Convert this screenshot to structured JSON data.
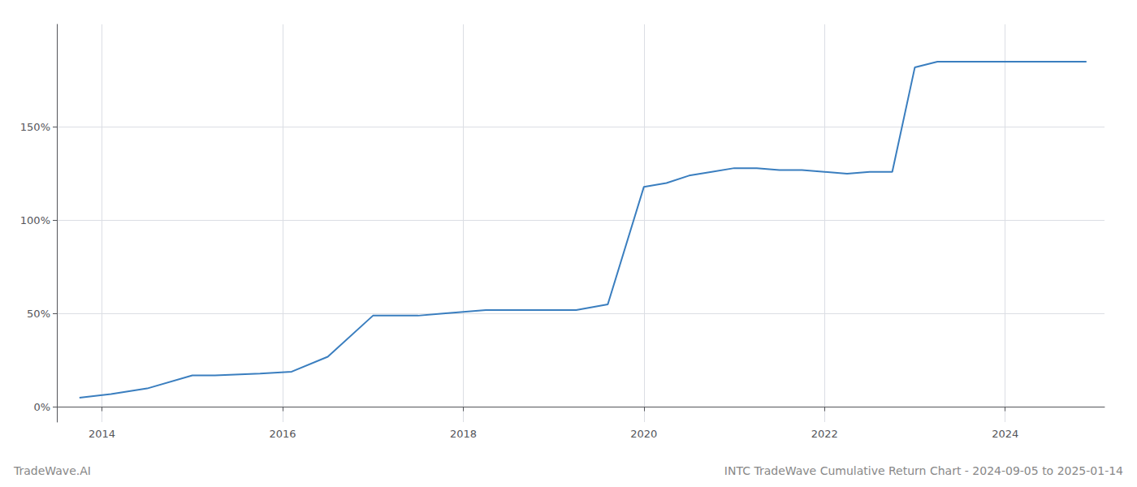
{
  "chart_data": {
    "type": "line",
    "title": "INTC TradeWave Cumulative Return Chart - 2024-09-05 to 2025-01-14",
    "annotations": [
      "TradeWave.AI"
    ],
    "x": [
      2013.75,
      2014.1,
      2014.5,
      2015.0,
      2015.25,
      2015.75,
      2016.1,
      2016.5,
      2017.0,
      2017.5,
      2017.75,
      2018.0,
      2018.25,
      2018.5,
      2019.0,
      2019.25,
      2019.6,
      2020.0,
      2020.25,
      2020.5,
      2020.75,
      2021.0,
      2021.25,
      2021.5,
      2021.75,
      2022.0,
      2022.25,
      2022.5,
      2022.75,
      2023.0,
      2023.25,
      2023.5,
      2023.75,
      2024.0,
      2024.25,
      2024.5,
      2024.75,
      2024.9
    ],
    "values": [
      5,
      7,
      10,
      17,
      17,
      18,
      19,
      27,
      49,
      49,
      50,
      51,
      52,
      52,
      52,
      52,
      55,
      118,
      120,
      124,
      126,
      128,
      128,
      127,
      127,
      126,
      125,
      126,
      126,
      182,
      185,
      185,
      185,
      185,
      185,
      185,
      185,
      185
    ],
    "color": "#3a7ebf",
    "xlim": [
      2013.5,
      2025.1
    ],
    "xticks": [
      2014,
      2016,
      2018,
      2020,
      2022,
      2024
    ],
    "ylim": [
      -8,
      205
    ],
    "yticks": [
      {
        "value": 0,
        "label": "0%"
      },
      {
        "value": 50,
        "label": "50%"
      },
      {
        "value": 100,
        "label": "100%"
      },
      {
        "value": 150,
        "label": "150%"
      }
    ],
    "grid": true
  }
}
